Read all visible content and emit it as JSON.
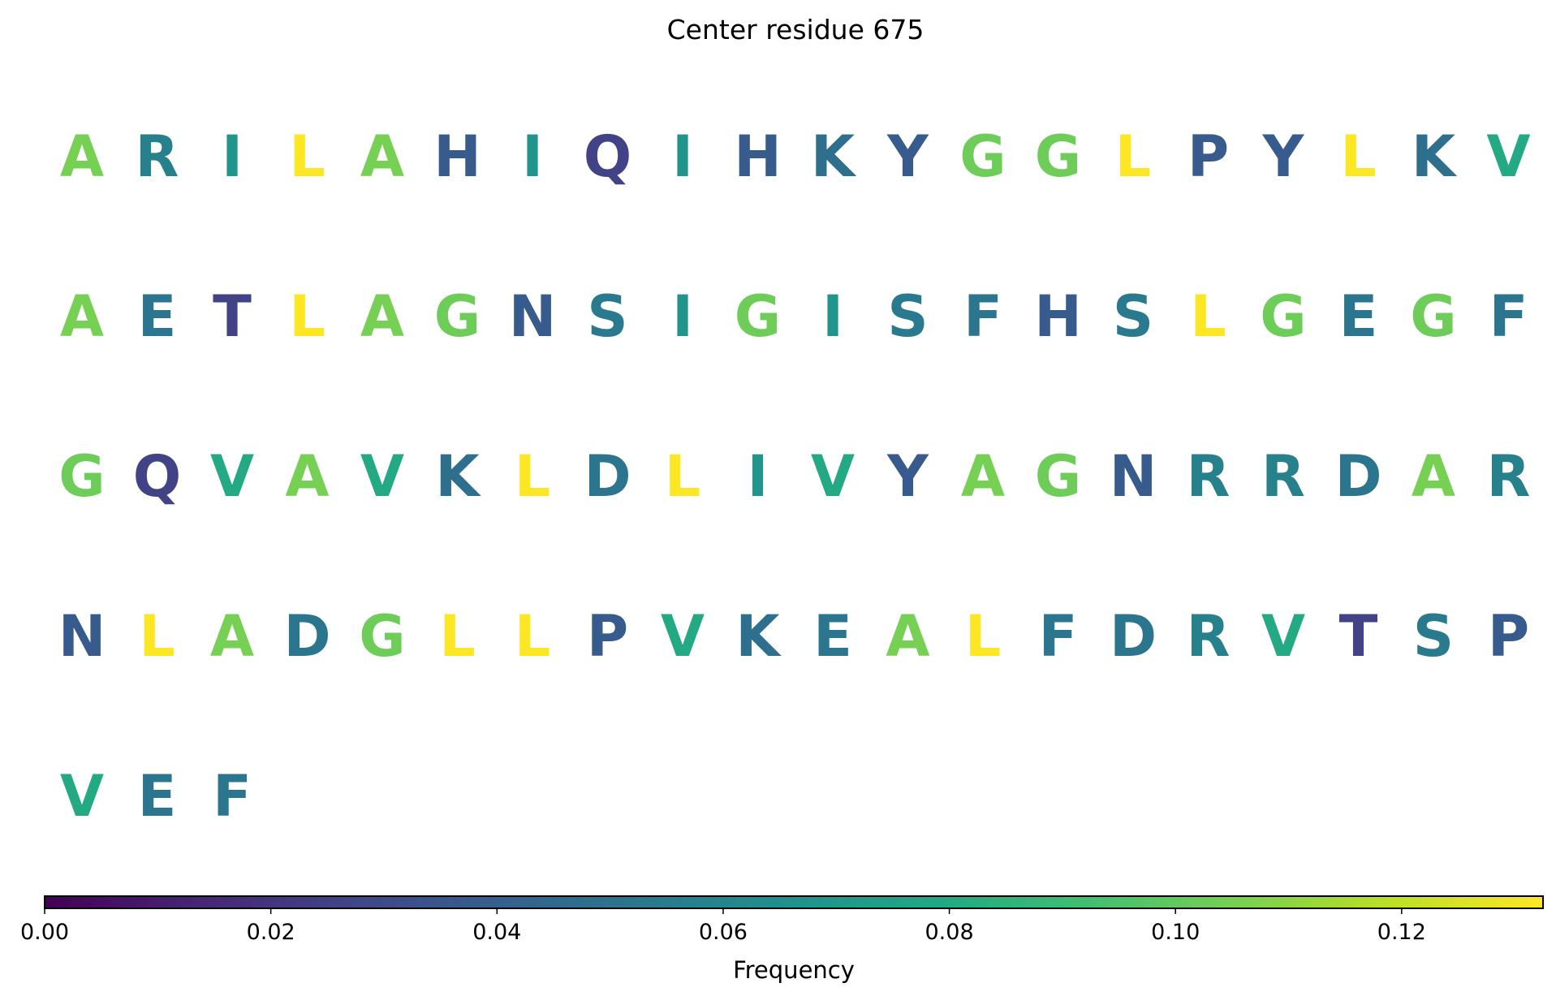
{
  "chart_data": {
    "type": "heatmap",
    "title": "Center residue 675",
    "columns_per_row": 20,
    "residues": [
      {
        "letter": "A",
        "frequency": 0.105
      },
      {
        "letter": "R",
        "frequency": 0.058
      },
      {
        "letter": "I",
        "frequency": 0.068
      },
      {
        "letter": "L",
        "frequency": 0.133
      },
      {
        "letter": "A",
        "frequency": 0.105
      },
      {
        "letter": "H",
        "frequency": 0.038
      },
      {
        "letter": "I",
        "frequency": 0.068
      },
      {
        "letter": "Q",
        "frequency": 0.026
      },
      {
        "letter": "I",
        "frequency": 0.068
      },
      {
        "letter": "H",
        "frequency": 0.038
      },
      {
        "letter": "K",
        "frequency": 0.048
      },
      {
        "letter": "Y",
        "frequency": 0.038
      },
      {
        "letter": "G",
        "frequency": 0.103
      },
      {
        "letter": "G",
        "frequency": 0.103
      },
      {
        "letter": "L",
        "frequency": 0.133
      },
      {
        "letter": "P",
        "frequency": 0.038
      },
      {
        "letter": "Y",
        "frequency": 0.038
      },
      {
        "letter": "L",
        "frequency": 0.133
      },
      {
        "letter": "K",
        "frequency": 0.048
      },
      {
        "letter": "V",
        "frequency": 0.08
      },
      {
        "letter": "A",
        "frequency": 0.105
      },
      {
        "letter": "E",
        "frequency": 0.052
      },
      {
        "letter": "T",
        "frequency": 0.026
      },
      {
        "letter": "L",
        "frequency": 0.133
      },
      {
        "letter": "A",
        "frequency": 0.105
      },
      {
        "letter": "G",
        "frequency": 0.103
      },
      {
        "letter": "N",
        "frequency": 0.038
      },
      {
        "letter": "S",
        "frequency": 0.054
      },
      {
        "letter": "I",
        "frequency": 0.068
      },
      {
        "letter": "G",
        "frequency": 0.103
      },
      {
        "letter": "I",
        "frequency": 0.068
      },
      {
        "letter": "S",
        "frequency": 0.054
      },
      {
        "letter": "F",
        "frequency": 0.052
      },
      {
        "letter": "H",
        "frequency": 0.038
      },
      {
        "letter": "S",
        "frequency": 0.054
      },
      {
        "letter": "L",
        "frequency": 0.133
      },
      {
        "letter": "G",
        "frequency": 0.103
      },
      {
        "letter": "E",
        "frequency": 0.052
      },
      {
        "letter": "G",
        "frequency": 0.103
      },
      {
        "letter": "F",
        "frequency": 0.052
      },
      {
        "letter": "G",
        "frequency": 0.103
      },
      {
        "letter": "Q",
        "frequency": 0.026
      },
      {
        "letter": "V",
        "frequency": 0.08
      },
      {
        "letter": "A",
        "frequency": 0.105
      },
      {
        "letter": "V",
        "frequency": 0.08
      },
      {
        "letter": "K",
        "frequency": 0.048
      },
      {
        "letter": "L",
        "frequency": 0.133
      },
      {
        "letter": "D",
        "frequency": 0.052
      },
      {
        "letter": "L",
        "frequency": 0.133
      },
      {
        "letter": "I",
        "frequency": 0.068
      },
      {
        "letter": "V",
        "frequency": 0.08
      },
      {
        "letter": "Y",
        "frequency": 0.038
      },
      {
        "letter": "A",
        "frequency": 0.105
      },
      {
        "letter": "G",
        "frequency": 0.103
      },
      {
        "letter": "N",
        "frequency": 0.038
      },
      {
        "letter": "R",
        "frequency": 0.058
      },
      {
        "letter": "R",
        "frequency": 0.058
      },
      {
        "letter": "D",
        "frequency": 0.052
      },
      {
        "letter": "A",
        "frequency": 0.105
      },
      {
        "letter": "R",
        "frequency": 0.058
      },
      {
        "letter": "N",
        "frequency": 0.038
      },
      {
        "letter": "L",
        "frequency": 0.133
      },
      {
        "letter": "A",
        "frequency": 0.105
      },
      {
        "letter": "D",
        "frequency": 0.052
      },
      {
        "letter": "G",
        "frequency": 0.103
      },
      {
        "letter": "L",
        "frequency": 0.133
      },
      {
        "letter": "L",
        "frequency": 0.133
      },
      {
        "letter": "P",
        "frequency": 0.038
      },
      {
        "letter": "V",
        "frequency": 0.08
      },
      {
        "letter": "K",
        "frequency": 0.048
      },
      {
        "letter": "E",
        "frequency": 0.052
      },
      {
        "letter": "A",
        "frequency": 0.105
      },
      {
        "letter": "L",
        "frequency": 0.133
      },
      {
        "letter": "F",
        "frequency": 0.052
      },
      {
        "letter": "D",
        "frequency": 0.052
      },
      {
        "letter": "R",
        "frequency": 0.058
      },
      {
        "letter": "V",
        "frequency": 0.08
      },
      {
        "letter": "T",
        "frequency": 0.026
      },
      {
        "letter": "S",
        "frequency": 0.054
      },
      {
        "letter": "P",
        "frequency": 0.038
      },
      {
        "letter": "V",
        "frequency": 0.08
      },
      {
        "letter": "E",
        "frequency": 0.052
      },
      {
        "letter": "F",
        "frequency": 0.052
      }
    ],
    "colorbar": {
      "label": "Frequency",
      "colormap": "viridis",
      "range": [
        0,
        0.1325
      ],
      "ticks": [
        0.0,
        0.02,
        0.04,
        0.06,
        0.08,
        0.1,
        0.12
      ],
      "tick_labels": [
        "0.00",
        "0.02",
        "0.04",
        "0.06",
        "0.08",
        "0.10",
        "0.12"
      ],
      "orientation": "horizontal",
      "placement": "bottom"
    }
  }
}
